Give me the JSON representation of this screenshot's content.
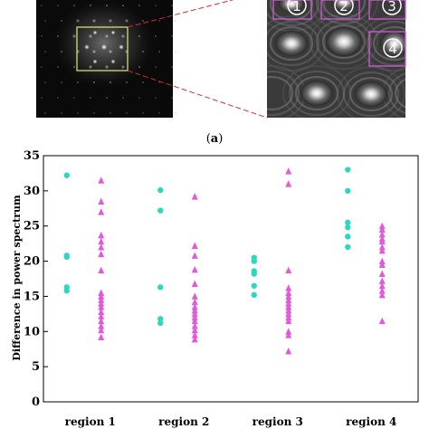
{
  "panel_a": {
    "label_open": "(",
    "label_letter": "a",
    "label_close": ")",
    "region_markers": [
      "1",
      "2",
      "3",
      "4"
    ]
  },
  "colors": {
    "series_1": "#2fd6c0",
    "series_2": "#e05ad9",
    "zoom_box": "#d9d97a",
    "zoom_line": "#c83232",
    "region_box": "#d45ad6"
  },
  "chart_data": {
    "type": "scatter",
    "title": "",
    "xlabel": "",
    "ylabel": "Difference in power spectrum",
    "categories": [
      "region 1",
      "region 2",
      "region 3",
      "region 4"
    ],
    "ylim": [
      0,
      35
    ],
    "yticks": [
      0,
      5,
      10,
      15,
      20,
      25,
      30,
      35
    ],
    "grid": false,
    "legend": "none",
    "series": [
      {
        "marker": "circle",
        "color": "#2fd6c0",
        "values": [
          [
            32.2,
            20.8,
            20.6,
            16.3,
            15.8
          ],
          [
            30.1,
            27.2,
            16.3,
            11.8,
            11.2
          ],
          [
            20.5,
            20.0,
            18.6,
            18.2,
            16.5,
            15.2
          ],
          [
            33.0,
            30.0,
            25.5,
            24.8,
            23.5,
            22.0
          ]
        ]
      },
      {
        "marker": "triangle",
        "color": "#e05ad9",
        "values": [
          [
            31.5,
            28.5,
            27.0,
            23.7,
            22.8,
            22.0,
            21.0,
            18.7,
            15.5,
            15.0,
            14.5,
            14.0,
            13.5,
            12.8,
            12.2,
            11.5,
            10.8,
            10.2,
            9.2
          ],
          [
            29.2,
            22.2,
            20.8,
            18.8,
            16.8,
            15.0,
            14.2,
            13.5,
            13.0,
            12.5,
            12.0,
            11.5,
            10.8,
            10.2,
            9.5,
            8.9
          ],
          [
            32.8,
            31.0,
            18.7,
            16.2,
            15.5,
            15.0,
            14.5,
            14.0,
            13.5,
            13.0,
            12.5,
            12.0,
            11.5,
            10.0,
            9.5,
            7.2
          ],
          [
            25.0,
            24.5,
            23.8,
            23.2,
            22.8,
            22.0,
            21.5,
            20.0,
            19.5,
            18.2,
            17.2,
            16.5,
            15.8,
            15.2,
            11.5
          ]
        ]
      }
    ]
  }
}
